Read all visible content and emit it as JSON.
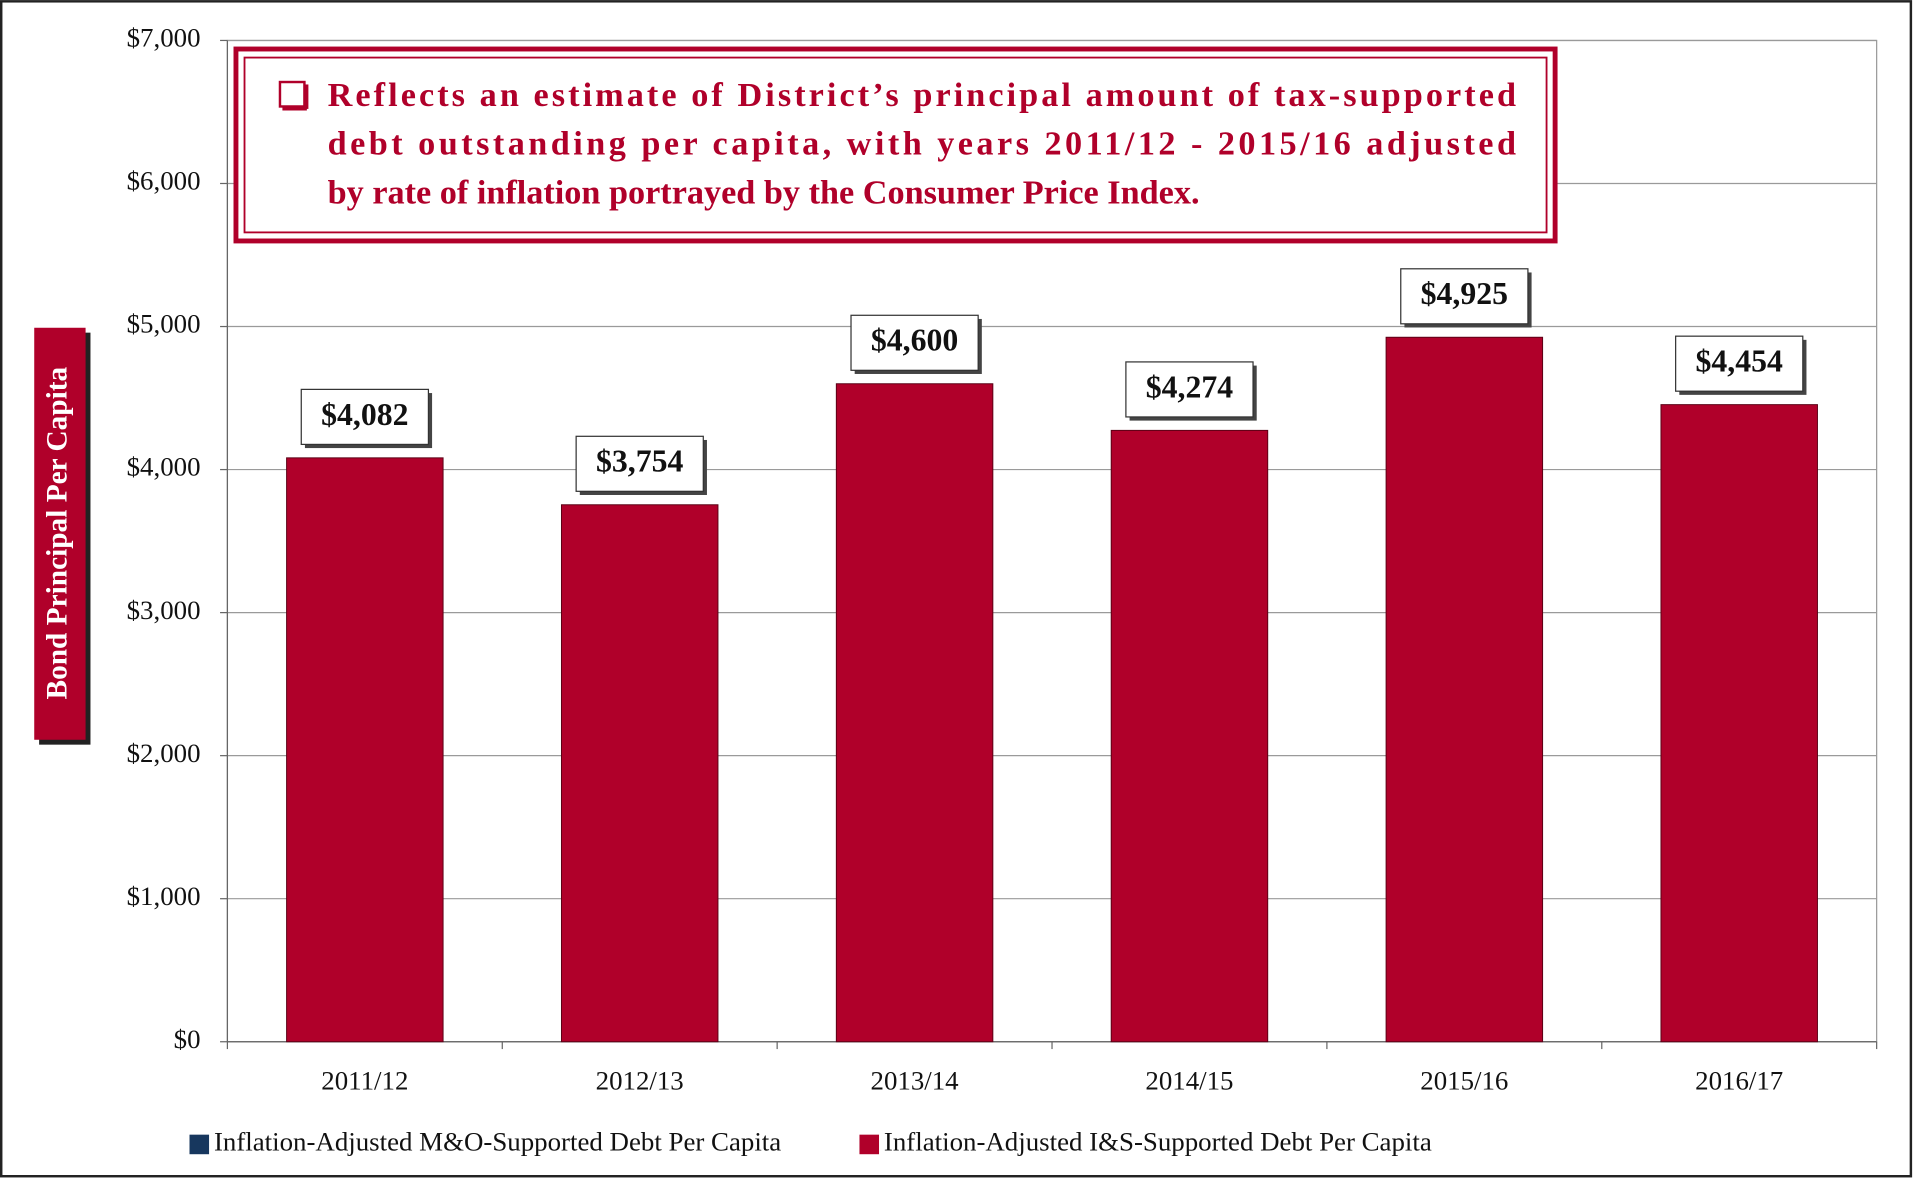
{
  "chart_data": {
    "type": "bar",
    "stacked": true,
    "y_label": "Bond Principal Per Capita",
    "annotation": [
      "Reflects an estimate of District’s principal amount of tax-supported",
      "debt outstanding per capita, with years 2011/12 - 2015/16 adjusted",
      "by rate of inflation portrayed by the Consumer Price Index."
    ],
    "categories": [
      "2011/12",
      "2012/13",
      "2013/14",
      "2014/15",
      "2015/16",
      "2016/17"
    ],
    "series": [
      {
        "name": "Inflation-Adjusted M&O-Supported Debt Per Capita",
        "color": "#17375e",
        "values": [
          0,
          0,
          0,
          0,
          0,
          0
        ]
      },
      {
        "name": "Inflation-Adjusted I&S-Supported Debt Per Capita",
        "color": "#b0002a",
        "values": [
          4082,
          3754,
          4600,
          4274,
          4925,
          4454
        ],
        "value_labels": [
          "$4,082",
          "$3,754",
          "$4,600",
          "$4,274",
          "$4,925",
          "$4,454"
        ]
      }
    ],
    "ylim": [
      0,
      7000
    ],
    "yticks": [
      {
        "value": 0,
        "label": "$0"
      },
      {
        "value": 1000,
        "label": "$1,000"
      },
      {
        "value": 2000,
        "label": "$2,000"
      },
      {
        "value": 3000,
        "label": "$3,000"
      },
      {
        "value": 4000,
        "label": "$4,000"
      },
      {
        "value": 5000,
        "label": "$5,000"
      },
      {
        "value": 6000,
        "label": "$6,000"
      },
      {
        "value": 7000,
        "label": "$7,000"
      }
    ],
    "grid": true,
    "legend": "bottom"
  }
}
